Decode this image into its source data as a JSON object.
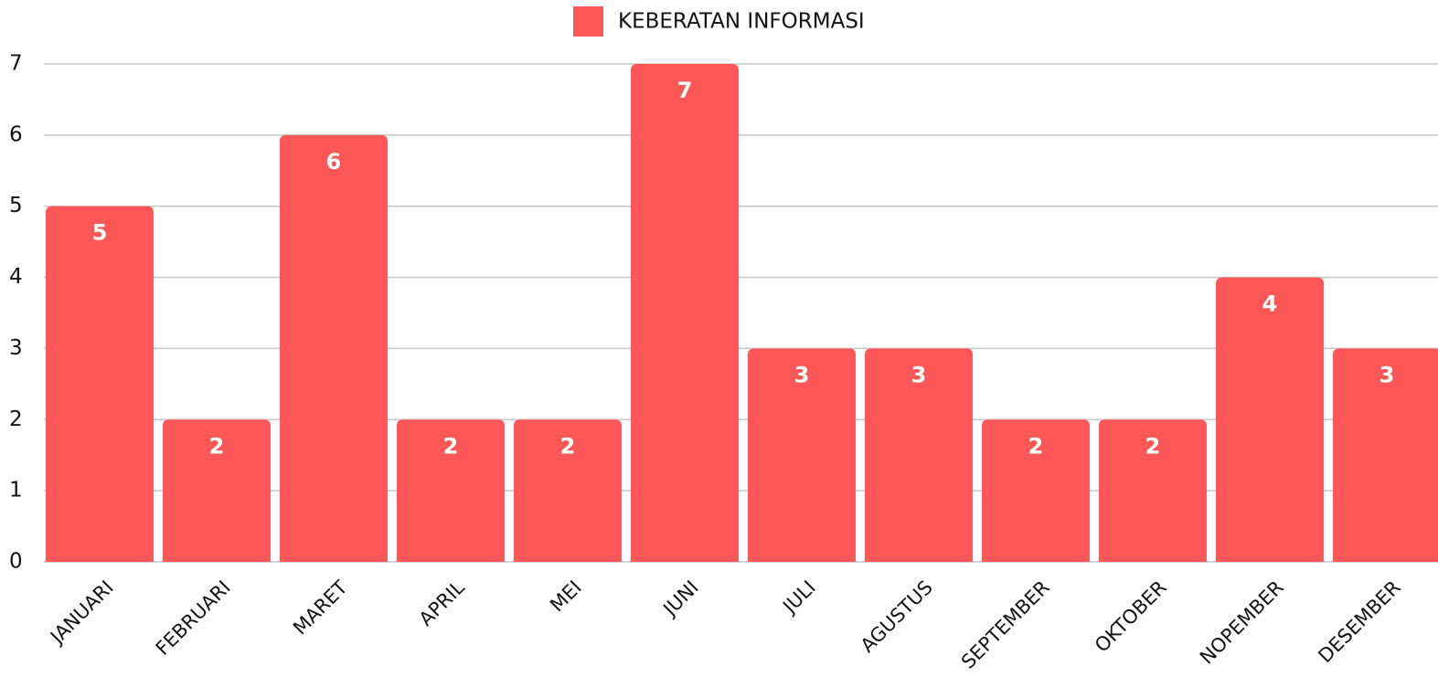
{
  "chart_data": {
    "type": "bar",
    "categories": [
      "JANUARI",
      "FEBRUARI",
      "MARET",
      "APRIL",
      "MEI",
      "JUNI",
      "JULI",
      "AGUSTUS",
      "SEPTEMBER",
      "OKTOBER",
      "NOPEMBER",
      "DESEMBER"
    ],
    "series": [
      {
        "name": "KEBERATAN INFORMASI",
        "color": "#ff5757",
        "values": [
          5,
          2,
          6,
          2,
          2,
          7,
          3,
          3,
          2,
          2,
          4,
          3
        ]
      }
    ],
    "ylim": [
      0,
      7
    ],
    "yticks": [
      0,
      1,
      2,
      3,
      4,
      5,
      6,
      7
    ],
    "grid": true,
    "legend": "top",
    "data_labels": true
  }
}
